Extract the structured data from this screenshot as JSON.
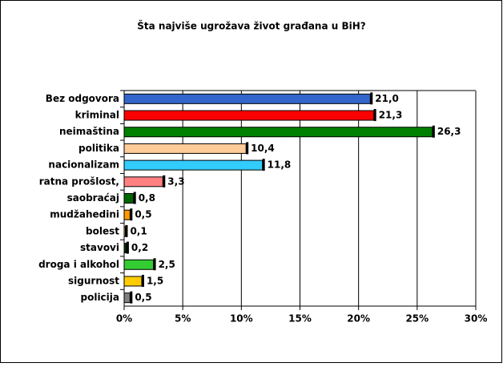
{
  "chart_data": {
    "type": "bar",
    "orientation": "horizontal",
    "title": "Šta najviše ugrožava život građana u BiH?",
    "categories": [
      "Bez odgovora",
      "kriminal",
      "neimaština",
      "politika",
      "nacionalizam",
      "ratna prošlost,",
      "saobraćaj",
      "mudžahedini",
      "bolest",
      "stavovi",
      "droga i alkohol",
      "sigurnost",
      "policija"
    ],
    "values": [
      21.0,
      21.3,
      26.3,
      10.4,
      11.8,
      3.3,
      0.8,
      0.5,
      0.1,
      0.2,
      2.5,
      1.5,
      0.5
    ],
    "value_labels": [
      "21,0",
      "21,3",
      "26,3",
      "10,4",
      "11,8",
      "3,3",
      "0,8",
      "0,5",
      "0,1",
      "0,2",
      "2,5",
      "1,5",
      "0,5"
    ],
    "colors": [
      "#3366cc",
      "#ff0000",
      "#008000",
      "#ffcc99",
      "#33ccff",
      "#ff8080",
      "#006600",
      "#ff9900",
      "#ffcc00",
      "#003300",
      "#33cc33",
      "#ffcc00",
      "#808080"
    ],
    "xlim": [
      0,
      30
    ],
    "xticks": [
      {
        "value": 0,
        "label": "0%"
      },
      {
        "value": 5,
        "label": "5%"
      },
      {
        "value": 10,
        "label": "10%"
      },
      {
        "value": 15,
        "label": "15%"
      },
      {
        "value": 20,
        "label": "20%"
      },
      {
        "value": 25,
        "label": "25%"
      },
      {
        "value": 30,
        "label": "30%"
      }
    ],
    "grid": true
  }
}
